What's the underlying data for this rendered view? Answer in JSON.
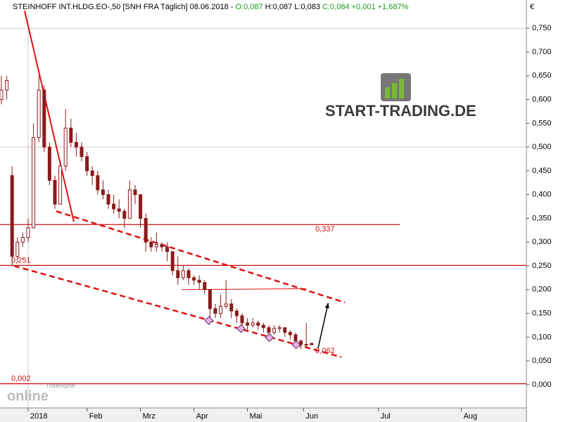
{
  "chart_data": {
    "type": "candlestick",
    "title": "STEINHOFF INT.HLDG.EO-,50 [SNH FRA  Täglich] 08.06.2018 -",
    "quote": [
      "O:0,087",
      "H:0,087",
      "L:0,083",
      "C:0,084 +0,001 +1,687%"
    ],
    "currency": "€",
    "brand": "START-TRADING.DE",
    "watermark": [
      "Tradesignal",
      "online"
    ],
    "color": "#8b1a1a",
    "x": [
      -5,
      -4,
      -3,
      -2,
      -1,
      0,
      1,
      2,
      3,
      4,
      5,
      6,
      7,
      8,
      9,
      10,
      11,
      12,
      13,
      14,
      15,
      16,
      17,
      18,
      19,
      20,
      21,
      22,
      23,
      24,
      25,
      26,
      27,
      28,
      29,
      30,
      31,
      32,
      33,
      34,
      35,
      36,
      37,
      38,
      39,
      40,
      41,
      42,
      43,
      44,
      45,
      46,
      47,
      48,
      49,
      50,
      51,
      52,
      53
    ],
    "ohlc": [
      [
        0.6,
        0.65,
        0.59,
        0.62
      ],
      [
        0.62,
        0.65,
        0.6,
        0.64
      ],
      [
        0.44,
        0.46,
        0.25,
        0.27
      ],
      [
        0.27,
        0.31,
        0.26,
        0.3
      ],
      [
        0.3,
        0.32,
        0.29,
        0.31
      ],
      [
        0.31,
        0.35,
        0.3,
        0.33
      ],
      [
        0.33,
        0.55,
        0.33,
        0.52
      ],
      [
        0.52,
        0.65,
        0.51,
        0.62
      ],
      [
        0.62,
        0.63,
        0.49,
        0.5
      ],
      [
        0.5,
        0.51,
        0.42,
        0.43
      ],
      [
        0.43,
        0.44,
        0.37,
        0.38
      ],
      [
        0.38,
        0.47,
        0.38,
        0.46
      ],
      [
        0.46,
        0.58,
        0.45,
        0.54
      ],
      [
        0.54,
        0.56,
        0.5,
        0.51
      ],
      [
        0.51,
        0.53,
        0.48,
        0.5
      ],
      [
        0.5,
        0.51,
        0.47,
        0.48
      ],
      [
        0.48,
        0.49,
        0.44,
        0.45
      ],
      [
        0.45,
        0.46,
        0.42,
        0.44
      ],
      [
        0.44,
        0.45,
        0.4,
        0.41
      ],
      [
        0.41,
        0.43,
        0.39,
        0.4
      ],
      [
        0.4,
        0.41,
        0.37,
        0.38
      ],
      [
        0.38,
        0.4,
        0.36,
        0.37
      ],
      [
        0.37,
        0.39,
        0.35,
        0.365
      ],
      [
        0.365,
        0.37,
        0.33,
        0.35
      ],
      [
        0.35,
        0.43,
        0.35,
        0.41
      ],
      [
        0.41,
        0.42,
        0.38,
        0.4
      ],
      [
        0.4,
        0.4,
        0.33,
        0.35
      ],
      [
        0.35,
        0.36,
        0.28,
        0.3
      ],
      [
        0.3,
        0.31,
        0.28,
        0.29
      ],
      [
        0.29,
        0.32,
        0.28,
        0.295
      ],
      [
        0.295,
        0.3,
        0.28,
        0.29
      ],
      [
        0.29,
        0.3,
        0.26,
        0.28
      ],
      [
        0.28,
        0.28,
        0.23,
        0.24
      ],
      [
        0.24,
        0.27,
        0.21,
        0.225
      ],
      [
        0.225,
        0.25,
        0.22,
        0.24
      ],
      [
        0.24,
        0.245,
        0.21,
        0.225
      ],
      [
        0.225,
        0.23,
        0.21,
        0.22
      ],
      [
        0.22,
        0.23,
        0.2,
        0.215
      ],
      [
        0.215,
        0.22,
        0.19,
        0.2
      ],
      [
        0.2,
        0.2,
        0.14,
        0.16
      ],
      [
        0.16,
        0.17,
        0.14,
        0.15
      ],
      [
        0.15,
        0.19,
        0.14,
        0.165
      ],
      [
        0.165,
        0.22,
        0.16,
        0.17
      ],
      [
        0.17,
        0.18,
        0.14,
        0.155
      ],
      [
        0.155,
        0.16,
        0.13,
        0.145
      ],
      [
        0.145,
        0.15,
        0.12,
        0.13
      ],
      [
        0.13,
        0.14,
        0.115,
        0.125
      ],
      [
        0.125,
        0.14,
        0.12,
        0.13
      ],
      [
        0.13,
        0.135,
        0.115,
        0.125
      ],
      [
        0.125,
        0.13,
        0.11,
        0.12
      ],
      [
        0.12,
        0.125,
        0.1,
        0.11
      ],
      [
        0.11,
        0.125,
        0.105,
        0.118
      ],
      [
        0.118,
        0.125,
        0.11,
        0.12
      ],
      [
        0.12,
        0.12,
        0.1,
        0.11
      ],
      [
        0.11,
        0.115,
        0.095,
        0.105
      ],
      [
        0.105,
        0.11,
        0.085,
        0.092
      ],
      [
        0.092,
        0.095,
        0.075,
        0.085
      ],
      [
        0.085,
        0.13,
        0.078,
        0.083
      ],
      [
        0.087,
        0.087,
        0.083,
        0.084
      ]
    ],
    "xlim": [
      -5.26,
      93.16
    ],
    "xticks": [
      {
        "value": 0,
        "label": "2018"
      },
      {
        "value": 11,
        "label": "Feb"
      },
      {
        "value": 21,
        "label": "Mrz"
      },
      {
        "value": 31,
        "label": "Apr"
      },
      {
        "value": 41,
        "label": "Mai"
      },
      {
        "value": 51.5,
        "label": "Jun"
      },
      {
        "value": 65.5,
        "label": "Jul"
      },
      {
        "value": 81,
        "label": "Aug"
      }
    ],
    "ylim": [
      -0.049,
      0.78
    ],
    "yticks": [
      {
        "value": 0,
        "label": "0,000"
      },
      {
        "value": 0.05,
        "label": "0,050"
      },
      {
        "value": 0.1,
        "label": "0,100"
      },
      {
        "value": 0.15,
        "label": "0,150"
      },
      {
        "value": 0.2,
        "label": "0,200"
      },
      {
        "value": 0.25,
        "label": "0,250"
      },
      {
        "value": 0.3,
        "label": "0,300"
      },
      {
        "value": 0.35,
        "label": "0,350"
      },
      {
        "value": 0.4,
        "label": "0,400"
      },
      {
        "value": 0.45,
        "label": "0,450"
      },
      {
        "value": 0.5,
        "label": "0,500"
      },
      {
        "value": 0.55,
        "label": "0,550"
      },
      {
        "value": 0.6,
        "label": "0,600"
      },
      {
        "value": 0.65,
        "label": "0,650"
      },
      {
        "value": 0.7,
        "label": "0,700"
      },
      {
        "value": 0.75,
        "label": "0,750"
      }
    ],
    "grid_levels": [
      0.75,
      0.5
    ],
    "grid_x": [
      0
    ],
    "levels": [
      {
        "value": 0.337,
        "label": "0,337"
      },
      {
        "value": 0.251,
        "label": "0,251"
      },
      {
        "value": 0.002,
        "label": "0,002"
      }
    ],
    "target": {
      "value": 0.062,
      "label": "0,062"
    },
    "trendlines": [
      {
        "points": [
          [
            -0.66,
            0.787
          ],
          [
            8.55,
            0.343
          ]
        ],
        "style": "solid"
      },
      {
        "points": [
          [
            5.26,
            0.365
          ],
          [
            59.2,
            0.173
          ]
        ],
        "style": "dashed"
      },
      {
        "points": [
          [
            -2.63,
            0.25
          ],
          [
            58.55,
            0.058
          ]
        ],
        "style": "dashed"
      },
      {
        "points": [
          [
            28.7,
            0.2
          ],
          [
            52,
            0.202
          ]
        ],
        "style": "thin"
      }
    ],
    "arrow": [
      [
        54.2,
        0.076
      ],
      [
        56.1,
        0.172
      ]
    ],
    "touches": {
      "x": [
        33.8,
        39.8,
        45.1,
        50.1
      ],
      "values": [
        0.135,
        0.118,
        0.099,
        0.084
      ]
    }
  }
}
